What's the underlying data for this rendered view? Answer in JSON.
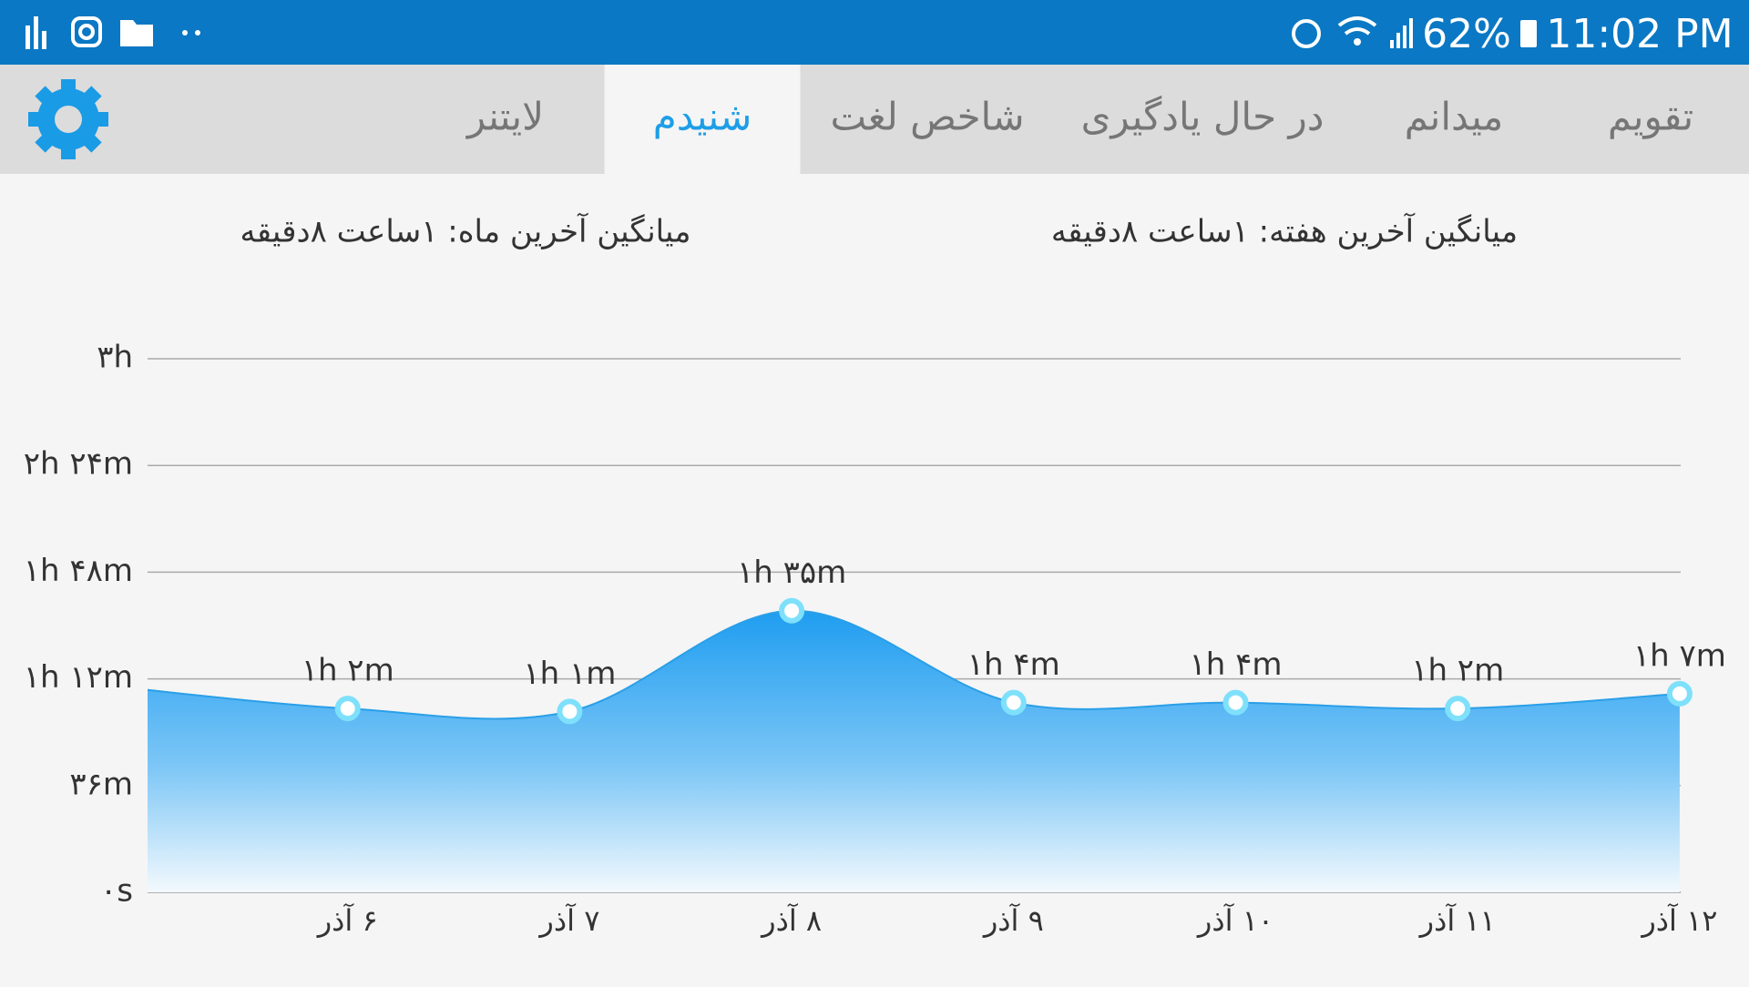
{
  "status_bar": {
    "battery": "62%",
    "time": "11:02 PM"
  },
  "tabs": {
    "items": [
      "تقویم",
      "میدانم",
      "در حال یادگیری",
      "شاخص لغت",
      "شنیدم",
      "لایتنر"
    ],
    "selected": 4
  },
  "summary": {
    "week": "میانگین آخرین هفته: ۱ساعت ۸دقیقه",
    "month": "میانگین آخرین ماه: ۱ساعت ۸دقیقه"
  },
  "chart_data": {
    "type": "area",
    "categories": [
      null,
      "۶ آذر",
      "۷ آذر",
      "۸ آذر",
      "۹ آذر",
      "۱۰ آذر",
      "۱۱ آذر",
      "۱۲ آذر"
    ],
    "series": [
      {
        "color": "#2a9fe8",
        "values": [
          69,
          62,
          61,
          95,
          64,
          64,
          62,
          67
        ],
        "value_labels": [
          null,
          "۱h ۲m",
          "۱h ۱m",
          "۱h ۳۵m",
          "۱h ۴m",
          "۱h ۴m",
          "۱h ۲m",
          "۱h ۷m"
        ]
      }
    ],
    "ylim": [
      0,
      180
    ],
    "yticks": [
      {
        "value": 0,
        "label": "۰s"
      },
      {
        "value": 36,
        "label": "۳۶m"
      },
      {
        "value": 72,
        "label": "۱h ۱۲m"
      },
      {
        "value": 108,
        "label": "۱h ۴۸m"
      },
      {
        "value": 144,
        "label": "۲h ۲۴m"
      },
      {
        "value": 180,
        "label": "۳h"
      }
    ],
    "grid": true
  }
}
